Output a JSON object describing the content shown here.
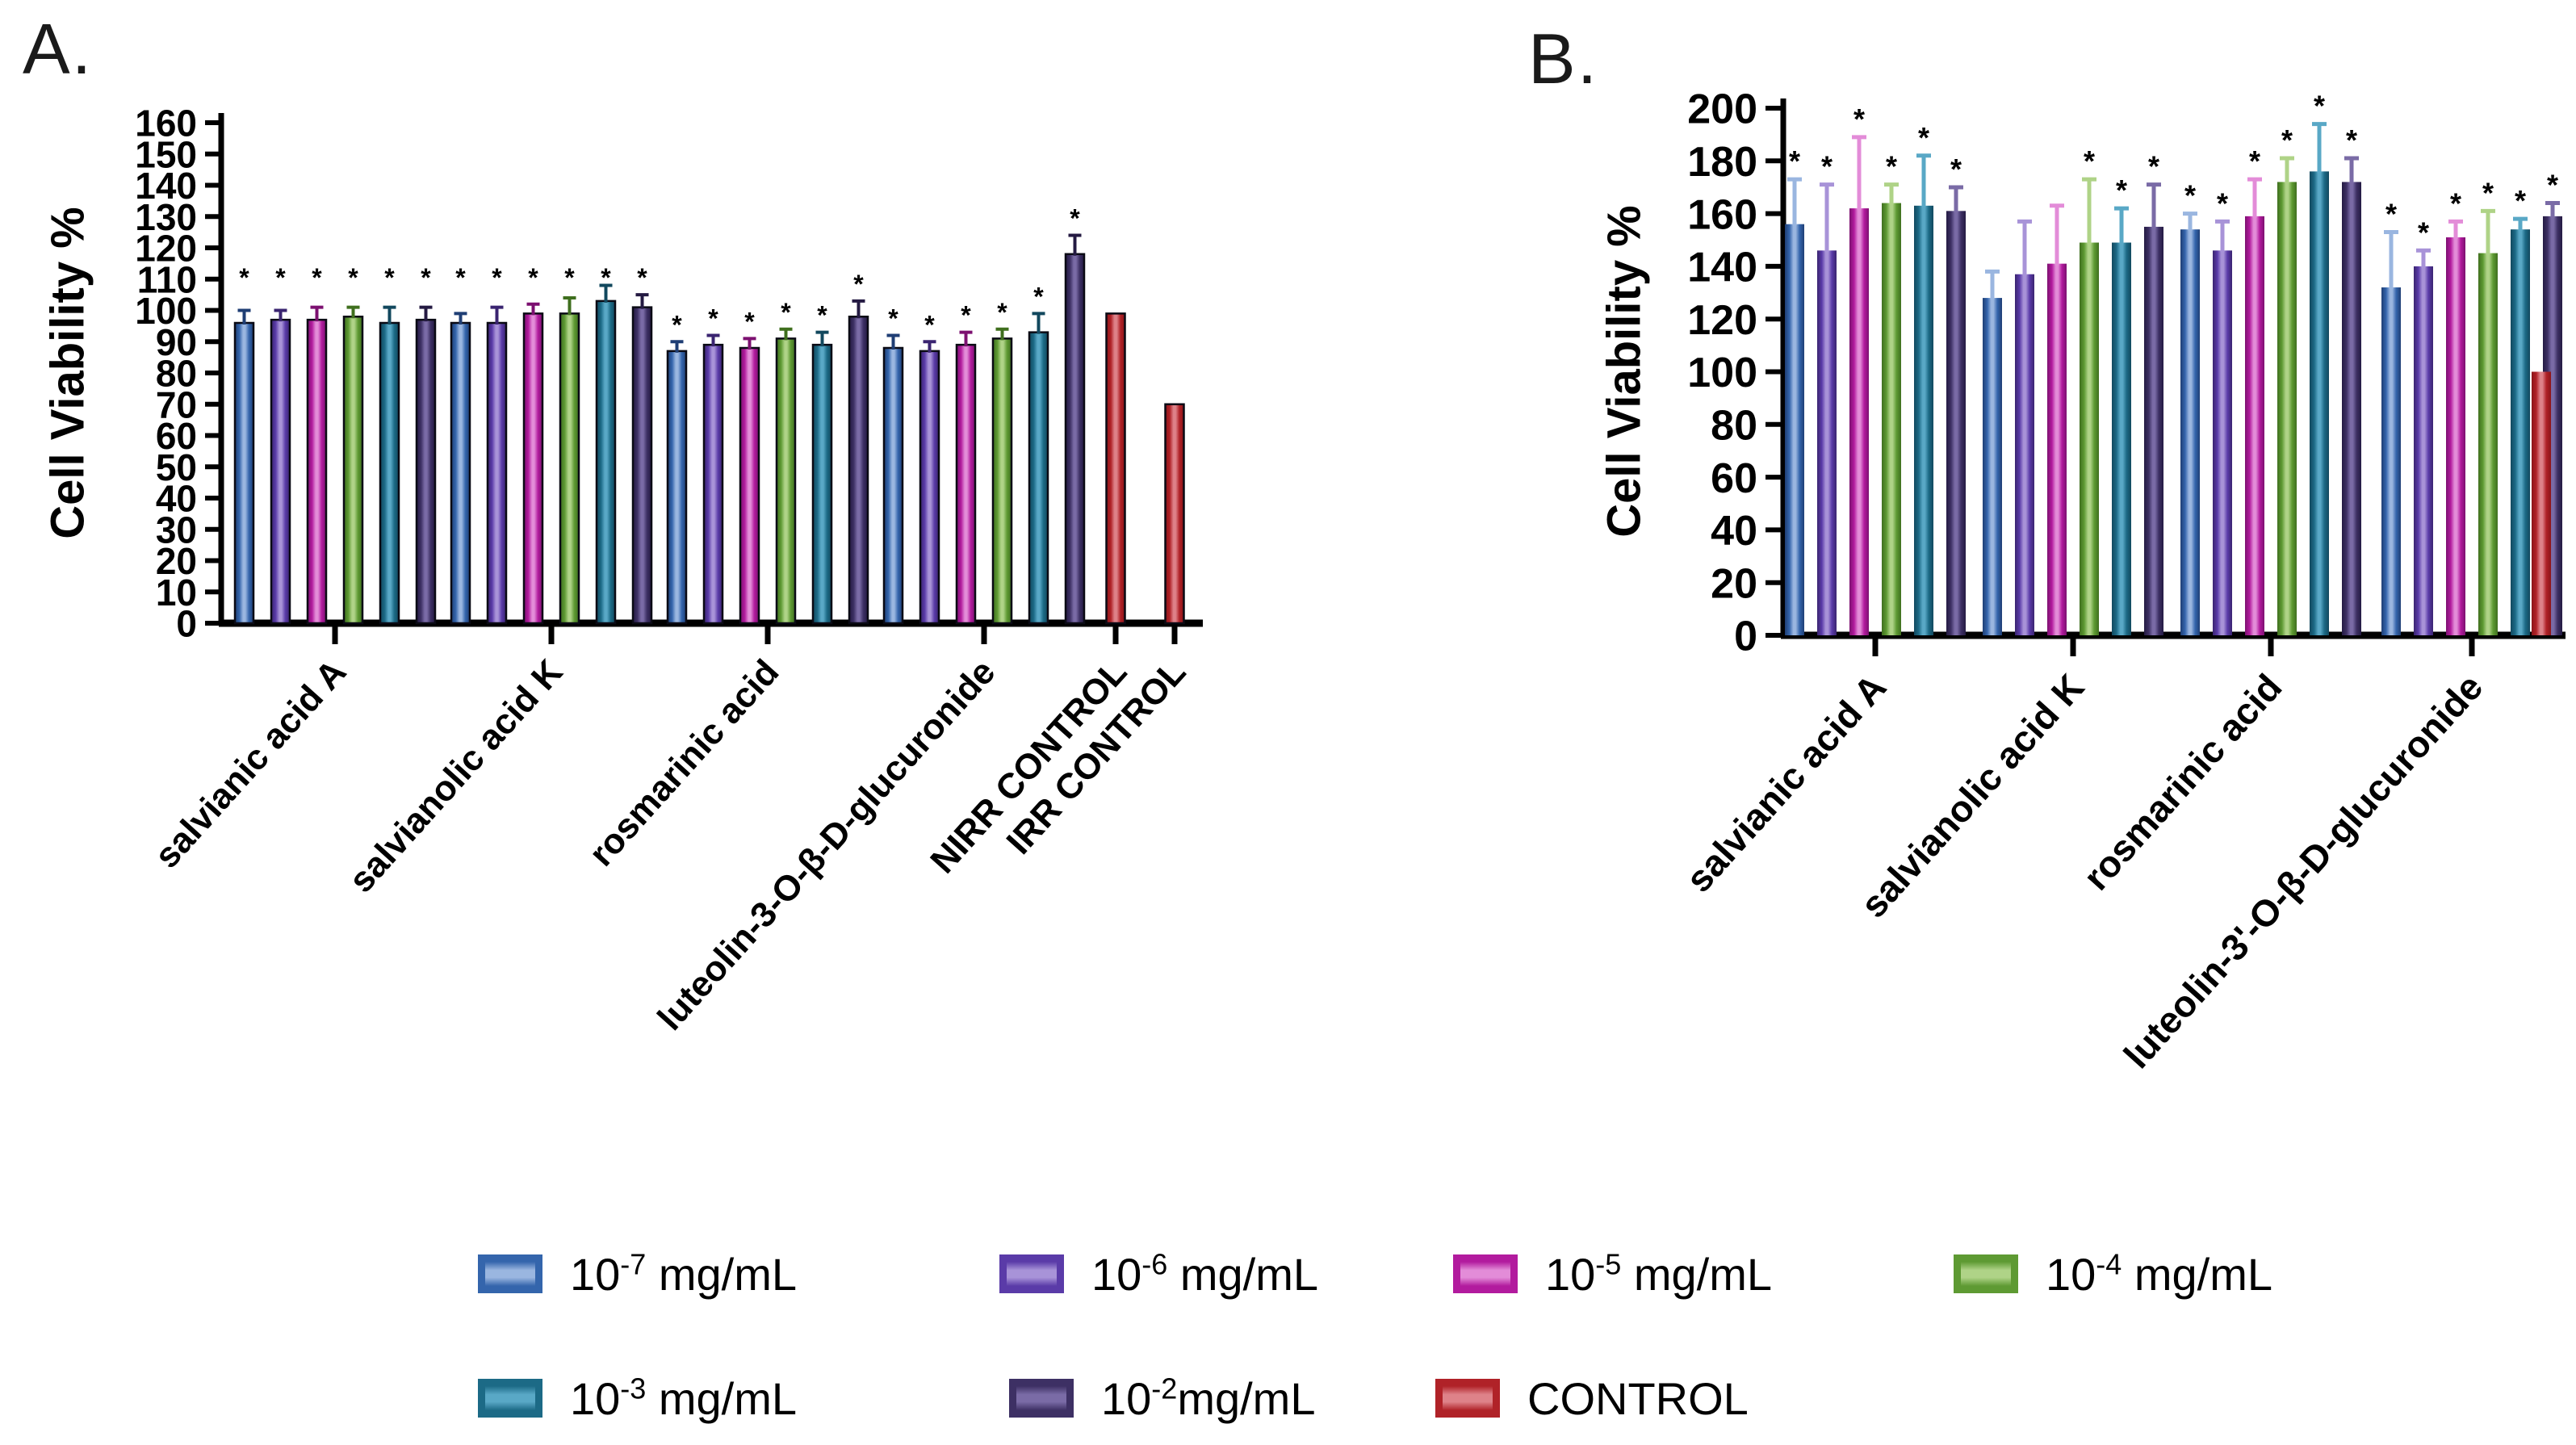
{
  "figure": {
    "panel_a_label": "A.",
    "panel_b_label": "B.",
    "sig_marker": "*"
  },
  "series_colors": {
    "1e-7": {
      "dark": "#1F3E74",
      "main": "#3465AC",
      "light": "#9AB6E0"
    },
    "1e-6": {
      "dark": "#3A2470",
      "main": "#5A3BA8",
      "light": "#A893D8"
    },
    "1e-5": {
      "dark": "#7C1070",
      "main": "#B21B9E",
      "light": "#E38CD8"
    },
    "1e-4": {
      "dark": "#3F6F1E",
      "main": "#5E9A33",
      "light": "#AFD387"
    },
    "1e-3": {
      "dark": "#12485E",
      "main": "#1C6A86",
      "light": "#59A8C6"
    },
    "1e-2": {
      "dark": "#241A42",
      "main": "#3D3064",
      "light": "#7A6BA6"
    },
    "control": {
      "dark": "#8C1418",
      "main": "#B02228",
      "light": "#DE8289"
    }
  },
  "legend": {
    "rows": [
      [
        {
          "series": "1e-7",
          "base": "10",
          "sup": "-7",
          "unit": " mg/mL"
        },
        {
          "series": "1e-6",
          "base": "10",
          "sup": "-6",
          "unit": " mg/mL"
        },
        {
          "series": "1e-5",
          "base": "10",
          "sup": "-5",
          "unit": " mg/mL"
        },
        {
          "series": "1e-4",
          "base": "10",
          "sup": "-4",
          "unit": " mg/mL"
        }
      ],
      [
        {
          "series": "1e-3",
          "base": "10",
          "sup": "-3",
          "unit": " mg/mL"
        },
        {
          "series": "1e-2",
          "base": "10",
          "sup": "-2",
          "unit": "mg/mL"
        },
        {
          "series": "control",
          "base": "",
          "sup": "",
          "unit": "CONTROL"
        }
      ]
    ]
  },
  "chart_data": [
    {
      "id": "A",
      "type": "bar",
      "ylabel": "Cell Viability %",
      "ylim": [
        0,
        160
      ],
      "yticks": [
        0,
        10,
        20,
        30,
        40,
        50,
        60,
        70,
        80,
        90,
        100,
        110,
        120,
        130,
        140,
        150,
        160
      ],
      "grid": false,
      "legend_position": "bottom-shared",
      "series": [
        "1e-7",
        "1e-6",
        "1e-5",
        "1e-4",
        "1e-3",
        "1e-2"
      ],
      "groups": [
        {
          "label": "salvianic acid A",
          "values": [
            96,
            97,
            97,
            98,
            96,
            97
          ],
          "errors": [
            4,
            3,
            4,
            3,
            5,
            4
          ],
          "sig": [
            true,
            true,
            true,
            true,
            true,
            true
          ],
          "sig_row": 113
        },
        {
          "label": "salvianolic acid K",
          "values": [
            96,
            96,
            99,
            99,
            103,
            101
          ],
          "errors": [
            3,
            5,
            3,
            5,
            5,
            4
          ],
          "sig": [
            true,
            true,
            true,
            true,
            true,
            true
          ],
          "sig_row": 113
        },
        {
          "label": "rosmarinic acid",
          "values": [
            87,
            89,
            88,
            91,
            89,
            98
          ],
          "errors": [
            3,
            3,
            3,
            3,
            4,
            5
          ],
          "sig": [
            true,
            true,
            true,
            true,
            true,
            true
          ]
        },
        {
          "label": "luteolin-3-O-β-D-glucuronide",
          "values": [
            88,
            87,
            89,
            91,
            93,
            118
          ],
          "errors": [
            4,
            3,
            4,
            3,
            6,
            6
          ],
          "sig": [
            true,
            true,
            true,
            true,
            true,
            true
          ]
        },
        {
          "label": "NIRR CONTROL",
          "series": "control",
          "values": [
            99
          ],
          "errors": [
            0
          ],
          "sig": [
            false
          ]
        },
        {
          "label": "IRR CONTROL",
          "series": "control",
          "values": [
            70
          ],
          "errors": [
            0
          ],
          "sig": [
            false
          ]
        }
      ]
    },
    {
      "id": "B",
      "type": "bar",
      "ylabel": "Cell Viability %",
      "ylim": [
        0,
        200
      ],
      "yticks": [
        0,
        20,
        40,
        60,
        80,
        100,
        120,
        140,
        160,
        180,
        200
      ],
      "grid": false,
      "legend_position": "bottom-shared",
      "series": [
        "1e-7",
        "1e-6",
        "1e-5",
        "1e-4",
        "1e-3",
        "1e-2"
      ],
      "groups": [
        {
          "label": "salvianic acid A",
          "values": [
            156,
            146,
            162,
            164,
            163,
            161
          ],
          "errors": [
            17,
            25,
            27,
            7,
            19,
            9
          ],
          "sig": [
            true,
            true,
            true,
            true,
            true,
            true
          ]
        },
        {
          "label": "salvianolic acid K",
          "values": [
            128,
            137,
            141,
            149,
            149,
            155
          ],
          "errors": [
            10,
            20,
            22,
            24,
            13,
            16
          ],
          "sig": [
            false,
            false,
            false,
            true,
            true,
            true
          ]
        },
        {
          "label": "rosmarinic acid",
          "values": [
            154,
            146,
            159,
            172,
            176,
            172
          ],
          "errors": [
            6,
            11,
            14,
            9,
            18,
            9
          ],
          "sig": [
            true,
            true,
            true,
            true,
            true,
            true
          ]
        },
        {
          "label": "luteolin-3'-O-β-D-glucuronide",
          "values": [
            132,
            140,
            151,
            145,
            154,
            159
          ],
          "errors": [
            21,
            6,
            6,
            16,
            4,
            5
          ],
          "sig": [
            true,
            true,
            true,
            true,
            true,
            true
          ]
        },
        {
          "label": "",
          "series": "control",
          "values": [
            100
          ],
          "errors": [
            0
          ],
          "sig": [
            false
          ],
          "no_tick": true
        }
      ]
    }
  ]
}
